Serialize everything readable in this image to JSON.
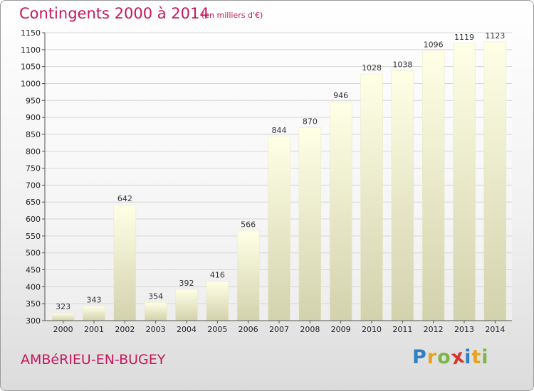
{
  "header": {
    "title": "Contingents 2000 à 2014",
    "subtitle": "(en milliers d'€)"
  },
  "footer": {
    "city": "AMBéRIEU-EN-BUGEY",
    "brand_letters": [
      {
        "char": "P",
        "color": "#2f7fc1"
      },
      {
        "char": "r",
        "color": "#e8a21c"
      },
      {
        "char": "o",
        "color": "#7ab648"
      },
      {
        "char": "x",
        "color": "#d9342b"
      },
      {
        "char": "i",
        "color": "#2f7fc1"
      },
      {
        "char": "t",
        "color": "#e8a21c"
      },
      {
        "char": "i",
        "color": "#7ab648"
      }
    ]
  },
  "colors": {
    "title": "#c2185b",
    "bar_fill_top": "#ffffe6",
    "bar_fill_bottom": "#d2d2ad",
    "grid": "#d6d6d6"
  },
  "chart_data": {
    "type": "bar",
    "categories": [
      "2000",
      "2001",
      "2002",
      "2003",
      "2004",
      "2005",
      "2006",
      "2007",
      "2008",
      "2009",
      "2010",
      "2011",
      "2012",
      "2013",
      "2014"
    ],
    "values": [
      323,
      343,
      642,
      354,
      392,
      416,
      566,
      844,
      870,
      946,
      1028,
      1038,
      1096,
      1119,
      1123
    ],
    "title": "Contingents 2000 à 2014",
    "subtitle": "(en milliers d'€)",
    "xlabel": "",
    "ylabel": "",
    "ylim": [
      300,
      1150
    ],
    "yticks": [
      300,
      350,
      400,
      450,
      500,
      550,
      600,
      650,
      700,
      750,
      800,
      850,
      900,
      950,
      1000,
      1050,
      1100,
      1150
    ],
    "grid": true,
    "data_labels": true
  }
}
